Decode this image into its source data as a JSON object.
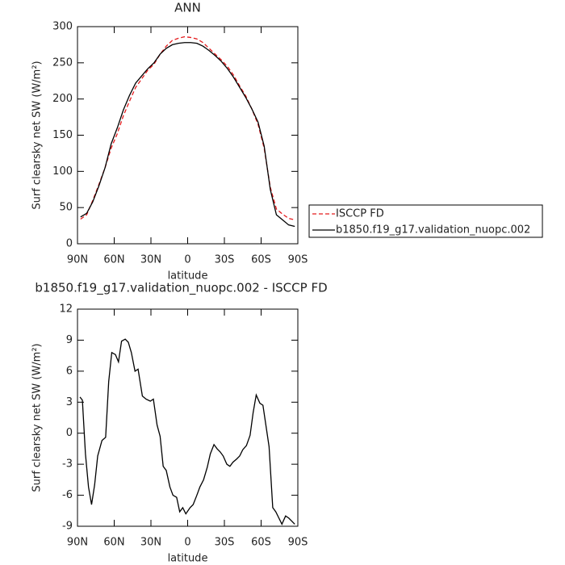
{
  "chart_data": [
    {
      "type": "line",
      "title": "ANN",
      "x_label": "latitude",
      "y_label": "Surf clearsky net SW (W/m²)",
      "xlim": [
        90,
        -90
      ],
      "xticks": [
        {
          "value": 90,
          "label": "90N"
        },
        {
          "value": 60,
          "label": "60N"
        },
        {
          "value": 30,
          "label": "30N"
        },
        0,
        {
          "value": -30,
          "label": "30S"
        },
        {
          "value": -60,
          "label": "60S"
        },
        {
          "value": -90,
          "label": "90S"
        }
      ],
      "ylim": [
        0,
        300
      ],
      "yticks": [
        0,
        50,
        100,
        150,
        200,
        250,
        300
      ],
      "legend": "right",
      "x": [
        87.5,
        82.5,
        77.5,
        72.5,
        67.5,
        62.5,
        57.5,
        52.5,
        47.5,
        42.5,
        37.5,
        32.5,
        27.5,
        22.5,
        17.5,
        12.5,
        7.5,
        2.5,
        -2.5,
        -7.5,
        -12.5,
        -17.5,
        -22.5,
        -27.5,
        -32.5,
        -37.5,
        -42.5,
        -47.5,
        -52.5,
        -57.5,
        -62.5,
        -67.5,
        -72.5,
        -77.5,
        -82.5,
        -87.5
      ],
      "series": [
        {
          "name": "ISCCP FD",
          "color": "#e41a1c",
          "dash": true,
          "values": [
            34,
            40,
            60,
            82,
            105,
            132,
            152,
            177,
            197,
            216,
            228,
            240,
            248,
            262,
            273,
            281,
            284,
            286,
            285,
            283,
            278,
            270,
            262,
            254,
            245,
            233,
            218,
            204,
            186,
            165,
            132,
            78,
            48,
            41,
            35,
            33
          ]
        },
        {
          "name": "b1850.f19_g17.validation_nuopc.002",
          "color": "#000000",
          "dash": false,
          "values": [
            37,
            42,
            58,
            80,
            105,
            138,
            160,
            185,
            205,
            222,
            232,
            242,
            250,
            262,
            270,
            275,
            277,
            278,
            278,
            277,
            273,
            267,
            260,
            252,
            242,
            230,
            216,
            202,
            186,
            168,
            135,
            75,
            40,
            33,
            26,
            24
          ]
        }
      ]
    },
    {
      "type": "line",
      "title": "b1850.f19_g17.validation_nuopc.002 - ISCCP FD",
      "x_label": "latitude",
      "y_label": "Surf clearsky net SW (W/m²)",
      "xlim": [
        90,
        -90
      ],
      "xticks": [
        {
          "value": 90,
          "label": "90N"
        },
        {
          "value": 60,
          "label": "60N"
        },
        {
          "value": 30,
          "label": "30N"
        },
        0,
        {
          "value": -30,
          "label": "30S"
        },
        {
          "value": -60,
          "label": "60S"
        },
        {
          "value": -90,
          "label": "90S"
        }
      ],
      "ylim": [
        -9,
        12
      ],
      "yticks": [
        -9,
        -6,
        -3,
        0,
        3,
        6,
        9,
        12
      ],
      "color": "#000000",
      "x": [
        88,
        86,
        83.5,
        81,
        78.5,
        76,
        73.5,
        70,
        67,
        64.5,
        62,
        59,
        56.5,
        54,
        51,
        48.5,
        46,
        43,
        40.5,
        37,
        34,
        30.5,
        28,
        25,
        22.5,
        20,
        17.5,
        14.5,
        12,
        9,
        6.5,
        4,
        1.5,
        -2,
        -4.5,
        -7.5,
        -10,
        -13,
        -16,
        -18.5,
        -21.5,
        -24,
        -26.5,
        -29,
        -32,
        -34.5,
        -37,
        -40,
        -42.5,
        -45,
        -48,
        -51,
        -53.5,
        -56,
        -59,
        -61.5,
        -64,
        -66.5,
        -69.5,
        -72,
        -74.5,
        -77,
        -80,
        -82.5,
        -85,
        -87.5
      ],
      "values": [
        3.5,
        3.2,
        -2,
        -5.2,
        -6.9,
        -5,
        -2.2,
        -0.7,
        -0.4,
        5,
        7.8,
        7.6,
        6.9,
        8.9,
        9.1,
        8.8,
        7.8,
        6,
        6.2,
        3.6,
        3.3,
        3.1,
        3.3,
        0.8,
        -0.3,
        -3.2,
        -3.6,
        -5.2,
        -6,
        -6.2,
        -7.6,
        -7.2,
        -7.8,
        -7.2,
        -6.9,
        -6,
        -5.2,
        -4.5,
        -3.3,
        -2,
        -1.1,
        -1.5,
        -1.8,
        -2.2,
        -3,
        -3.2,
        -2.8,
        -2.5,
        -2.2,
        -1.6,
        -1.2,
        -0.2,
        2,
        3.7,
        2.9,
        2.7,
        0.7,
        -1.3,
        -7.2,
        -7.6,
        -8.2,
        -8.8,
        -8,
        -8.2,
        -8.5,
        -8.8
      ]
    }
  ]
}
